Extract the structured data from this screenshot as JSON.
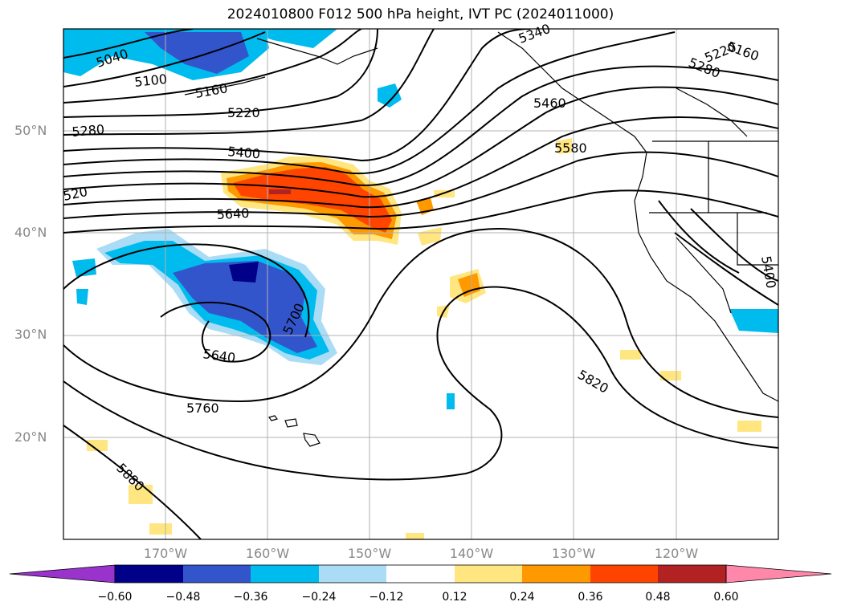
{
  "title": "2024010800 F012 500 hPa height, IVT PC (2024011000)",
  "lat_labels": [
    "50°N",
    "40°N",
    "30°N",
    "20°N"
  ],
  "lon_labels": [
    "170°W",
    "160°W",
    "150°W",
    "140°W",
    "130°W",
    "120°W"
  ],
  "contour_labels": [
    "5040",
    "5100",
    "5160",
    "5220",
    "5280",
    "5400",
    "5640",
    "520",
    "5340",
    "5460",
    "5580",
    "5160",
    "5220",
    "5280",
    "5400",
    "5700",
    "5640",
    "5760",
    "5820",
    "5880"
  ],
  "colorbar": {
    "ticks": [
      "−0.60",
      "−0.48",
      "−0.36",
      "−0.24",
      "−0.12",
      "0.12",
      "0.24",
      "0.36",
      "0.48",
      "0.60"
    ],
    "colors": [
      "#9933cc",
      "#000088",
      "#3355cc",
      "#00bbee",
      "#aaddf5",
      "#ffffff",
      "#ffe680",
      "#ff9900",
      "#ff4400",
      "#b22222",
      "#ff88aa"
    ]
  }
}
